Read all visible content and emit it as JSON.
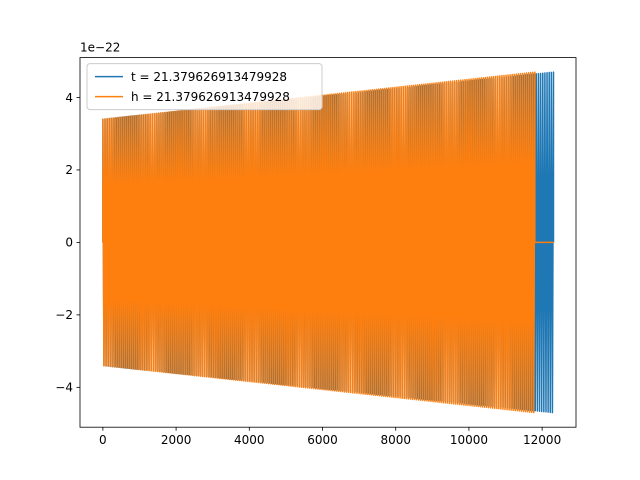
{
  "chart_data": {
    "type": "line",
    "title": "",
    "xlabel": "",
    "ylabel": "",
    "y_scale_label": "1e−22",
    "xlim": [
      -625,
      12925
    ],
    "ylim": [
      -5.1,
      5.1
    ],
    "xticks": [
      0,
      2000,
      4000,
      6000,
      8000,
      10000,
      12000
    ],
    "xtick_labels": [
      "0",
      "2000",
      "4000",
      "6000",
      "8000",
      "10000",
      "12000"
    ],
    "yticks": [
      -4,
      -2,
      0,
      2,
      4
    ],
    "ytick_labels": [
      "−4",
      "−2",
      "0",
      "2",
      "4"
    ],
    "grid": false,
    "legend_position": "upper-left",
    "series": [
      {
        "name": "t = 21.379626913479928",
        "color": "#1f77b4",
        "waveform": "chirp",
        "x_start": 0,
        "x_end": 12310,
        "amplitude_start": 3.4,
        "amplitude_end": 4.7,
        "cycles": 210
      },
      {
        "name": "h = 21.379626913479928",
        "color": "#ff7f0e",
        "waveform": "chirp",
        "x_start": 0,
        "x_end": 11800,
        "amplitude_start": 3.4,
        "amplitude_end": 4.7,
        "cycles": 210,
        "trailing_zero_until": 12310
      }
    ]
  }
}
